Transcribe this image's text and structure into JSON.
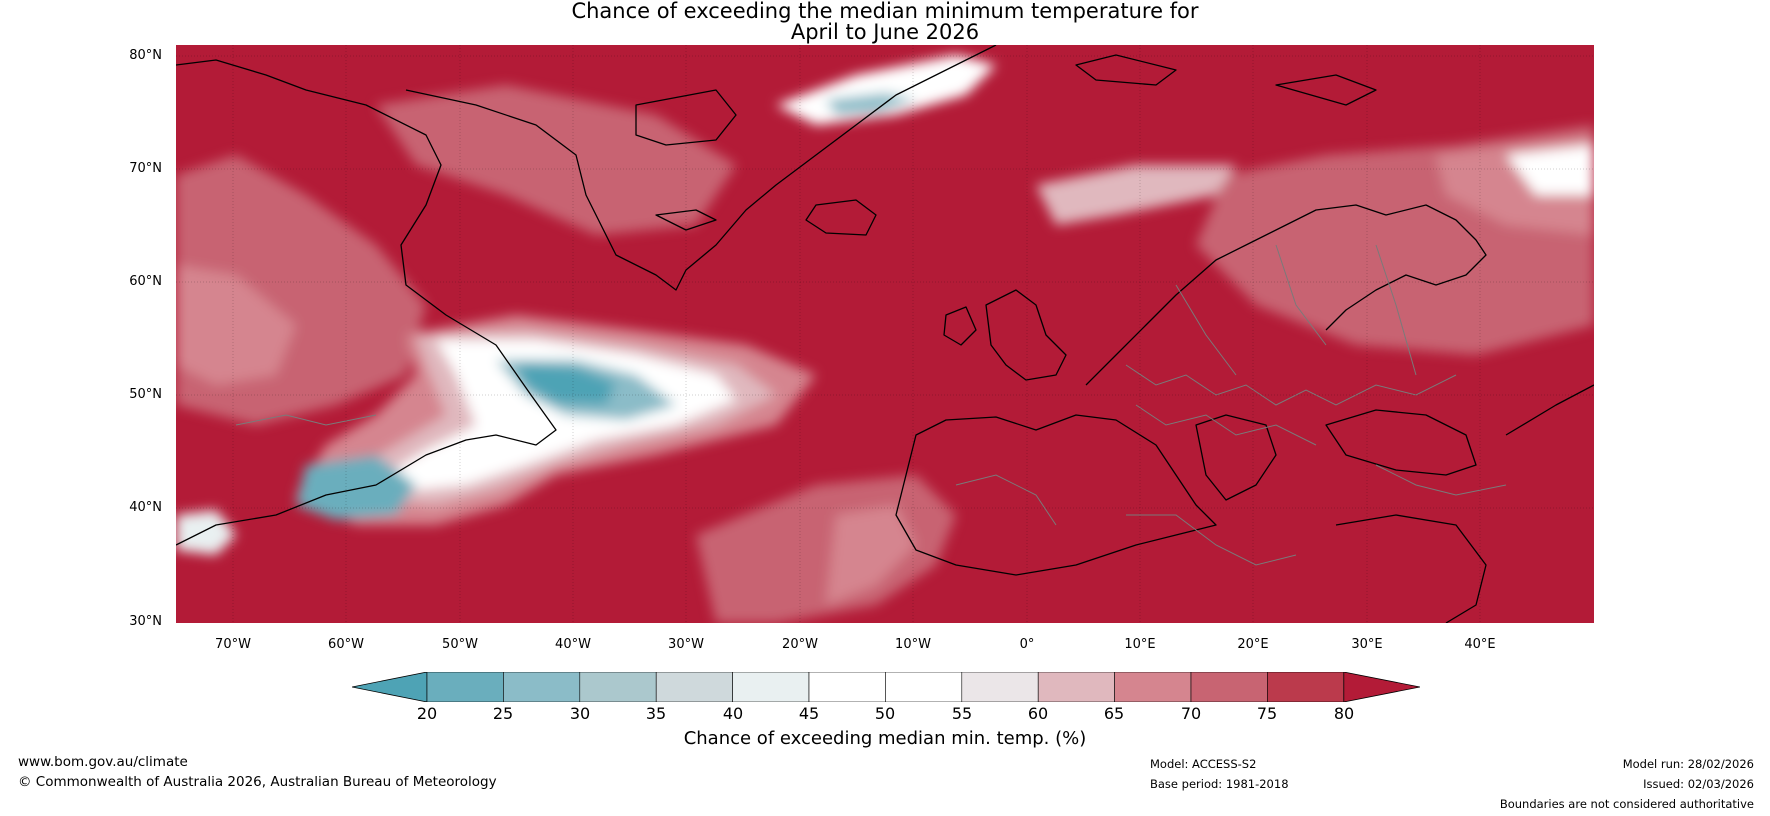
{
  "title": {
    "line1": "Chance of exceeding the median minimum temperature for",
    "line2": "April to June 2026"
  },
  "map": {
    "lat_labels": [
      "80°N",
      "70°N",
      "60°N",
      "50°N",
      "40°N",
      "30°N"
    ],
    "lon_labels": [
      "70°W",
      "60°W",
      "50°W",
      "40°W",
      "30°W",
      "20°W",
      "10°W",
      "0°",
      "10°E",
      "20°E",
      "30°E",
      "40°E"
    ],
    "colors": {
      "sea_high": "#b31b37",
      "land_high": "#b0203a",
      "ocean_deep": "#b41c38"
    }
  },
  "colorbar": {
    "label": "Chance of exceeding median min. temp. (%)",
    "ticks": [
      "20",
      "25",
      "30",
      "35",
      "40",
      "45",
      "50",
      "55",
      "60",
      "65",
      "70",
      "75",
      "80"
    ],
    "colors": [
      "#4ea3b5",
      "#6aaebd",
      "#8bbcc8",
      "#abc8cd",
      "#cfd9dc",
      "#e9f0f1",
      "#ffffff",
      "#ffffff",
      "#ebe6e8",
      "#e0b8be",
      "#d5858f",
      "#c86472",
      "#bb3a4c",
      "#b31b37"
    ]
  },
  "footer": {
    "website": "www.bom.gov.au/climate",
    "copyright": "© Commonwealth of Australia 2026, Australian Bureau of Meteorology",
    "model": "Model: ACCESS-S2",
    "base_period": "Base period: 1981-2018",
    "model_run": "Model run: 28/02/2026",
    "issued": "Issued: 02/03/2026",
    "disclaimer": "Boundaries are not considered authoritative"
  }
}
